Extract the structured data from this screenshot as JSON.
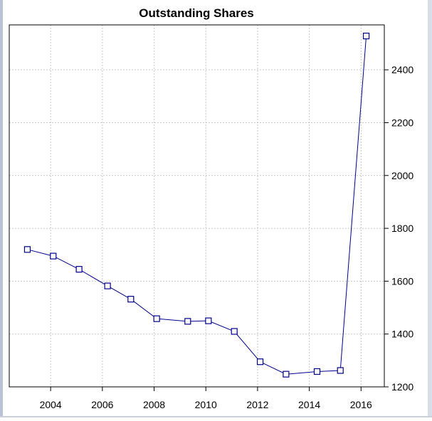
{
  "chart_data": {
    "type": "line",
    "title": "Outstanding Shares",
    "x": [
      2003.1,
      2004.1,
      2005.1,
      2006.2,
      2007.1,
      2008.1,
      2009.3,
      2010.1,
      2011.1,
      2012.1,
      2013.1,
      2014.3,
      2015.2,
      2016.2
    ],
    "values": [
      1720,
      1695,
      1645,
      1582,
      1532,
      1458,
      1448,
      1450,
      1410,
      1295,
      1248,
      1258,
      1262,
      2528
    ],
    "xticks": [
      2004,
      2006,
      2008,
      2010,
      2012,
      2014,
      2016
    ],
    "yticks": [
      1200,
      1400,
      1600,
      1800,
      2000,
      2200,
      2400
    ],
    "xlim": [
      2002.4,
      2016.9
    ],
    "ylim": [
      1200,
      2570
    ],
    "grid": true,
    "y_axis_side": "right",
    "colors": {
      "line": "#00008b",
      "marker": "#00008b",
      "grid": "#c8c8c8"
    }
  }
}
